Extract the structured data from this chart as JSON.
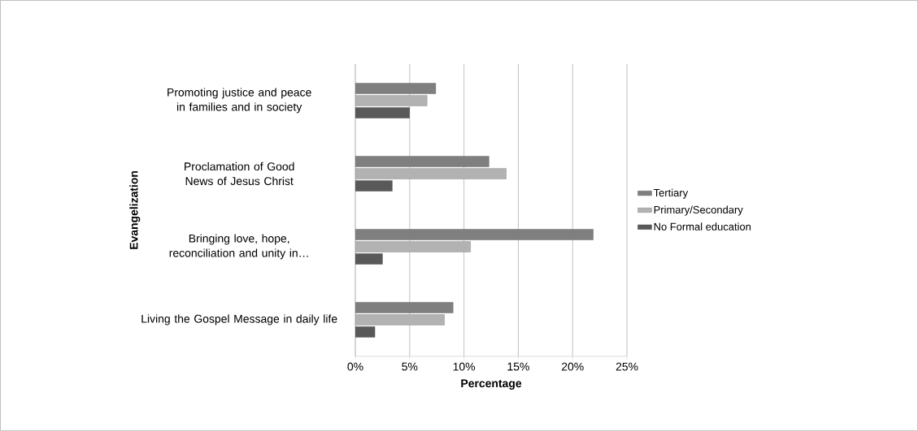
{
  "chart_data": {
    "type": "bar",
    "orientation": "horizontal",
    "categories": [
      "Promoting justice and peace in families and in society",
      "Proclamation of Good News of Jesus Christ",
      "Bringing love, hope, reconciliation and unity in…",
      "Living the Gospel Message in daily life"
    ],
    "series": [
      {
        "name": "Tertiary",
        "color": "#7f7f7f",
        "values": [
          7.4,
          12.3,
          21.9,
          9.0
        ]
      },
      {
        "name": "Primary/Secondary",
        "color": "#b2b2b2",
        "values": [
          6.6,
          13.9,
          10.6,
          8.2
        ]
      },
      {
        "name": "No Formal education",
        "color": "#595959",
        "values": [
          5.0,
          3.4,
          2.5,
          1.8
        ]
      }
    ],
    "xlim": [
      0,
      25
    ],
    "xticks": [
      {
        "value": 0,
        "label": "0%"
      },
      {
        "value": 5,
        "label": "5%"
      },
      {
        "value": 10,
        "label": "10%"
      },
      {
        "value": 15,
        "label": "15%"
      },
      {
        "value": 20,
        "label": "20%"
      },
      {
        "value": 25,
        "label": "25%"
      }
    ],
    "xlabel": "Percentage",
    "ylabel": "Evangelization",
    "grid": "x",
    "legend": "right"
  }
}
